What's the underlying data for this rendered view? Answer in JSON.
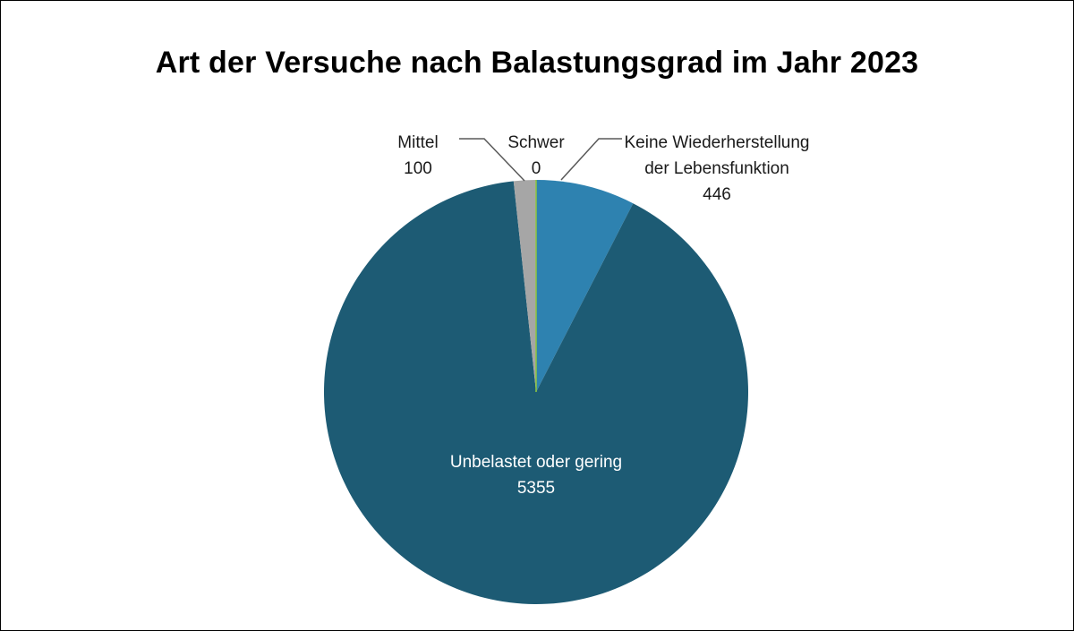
{
  "chart_data": {
    "type": "pie",
    "title": "Art der Versuche nach Balastungsgrad im Jahr 2023",
    "slices": [
      {
        "label": "Keine Wiederherstellung der Lebensfunktion",
        "label_lines": [
          "Keine Wiederherstellung",
          "der Lebensfunktion"
        ],
        "value": 446,
        "color": "#2e82b0"
      },
      {
        "label": "Unbelastet oder gering",
        "label_lines": [
          "Unbelastet oder gering"
        ],
        "value": 5355,
        "color": "#1d5b74"
      },
      {
        "label": "Mittel",
        "label_lines": [
          "Mittel"
        ],
        "value": 100,
        "color": "#a6a6a6"
      },
      {
        "label": "Schwer",
        "label_lines": [
          "Schwer"
        ],
        "value": 0,
        "color": "#8dc63f"
      }
    ],
    "start_angle": "12 o'clock",
    "direction": "clockwise",
    "legend": "none"
  }
}
